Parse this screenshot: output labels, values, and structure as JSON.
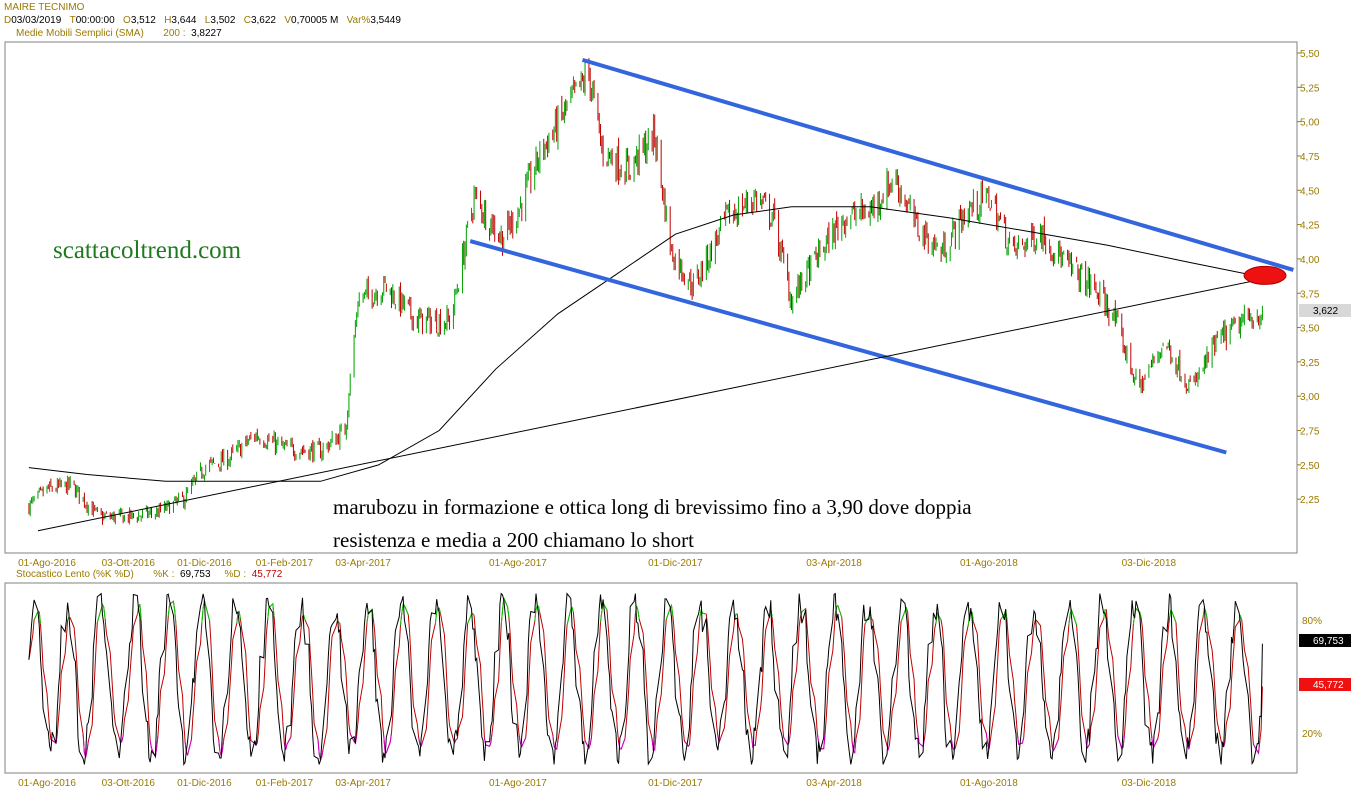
{
  "header": {
    "symbol": "MAIRE TECNIMO",
    "fields": [
      {
        "key": "D",
        "value": "03/03/2019"
      },
      {
        "key": "T",
        "value": "00:00:00"
      },
      {
        "key": "O",
        "value": "3,512"
      },
      {
        "key": "H",
        "value": "3,644"
      },
      {
        "key": "L",
        "value": "3,502"
      },
      {
        "key": "C",
        "value": "3,622"
      },
      {
        "key": "V",
        "value": "0,70005 M"
      },
      {
        "key": "Var%",
        "value": "3,5449"
      }
    ],
    "sma_label": "Medie Mobili Semplici (SMA)",
    "sma_period": "200 :",
    "sma_value": "3,8227"
  },
  "stoch_header": {
    "label": "Stocastico Lento (%K %D)",
    "k_label": "%K :",
    "k_value": "69,753",
    "d_label": "%D :",
    "d_value": "45,772"
  },
  "watermark": "scattacoltrend.com",
  "annotation": {
    "line1": "marubozu in formazione e ottica long di brevissimo fino a 3,90 dove doppia",
    "line2": "resistenza e media a 200 chiamano lo short"
  },
  "price_badge": "3,622",
  "k_badge": "69,753",
  "d_badge": "45,772",
  "colors": {
    "up": "#00a000",
    "down": "#c00000",
    "channel": "#3366dd",
    "sma": "#000000",
    "stoch_k": "#000000",
    "stoch_d": "#c00000",
    "stoch_overbought": "#00cc00",
    "stoch_oversold": "#cc00cc",
    "axis_text": "#9a7a00",
    "marker": "#ee1111"
  },
  "chart_data": [
    {
      "type": "candlestick",
      "title": "MAIRE TECNIMO",
      "y_ticks": [
        "5,50",
        "5,25",
        "5,00",
        "4,75",
        "4,50",
        "4,25",
        "4,00",
        "3,75",
        "3,50",
        "3,25",
        "3,00",
        "2,75",
        "2,50",
        "2,25"
      ],
      "x_ticks": [
        "01-Ago-2016",
        "03-Ott-2016",
        "01-Dic-2016",
        "01-Feb-2017",
        "03-Apr-2017",
        "01-Ago-2017",
        "01-Dic-2017",
        "03-Apr-2018",
        "01-Ago-2018",
        "03-Dic-2018"
      ],
      "ylim": [
        2.0,
        5.5
      ],
      "close_path": [
        [
          "2016-07-18",
          2.2
        ],
        [
          "2016-08-01",
          2.32
        ],
        [
          "2016-08-20",
          2.35
        ],
        [
          "2016-09-10",
          2.12
        ],
        [
          "2016-10-03",
          2.12
        ],
        [
          "2016-10-25",
          2.15
        ],
        [
          "2016-11-15",
          2.25
        ],
        [
          "2016-12-01",
          2.48
        ],
        [
          "2016-12-20",
          2.55
        ],
        [
          "2017-01-10",
          2.72
        ],
        [
          "2017-02-01",
          2.62
        ],
        [
          "2017-03-01",
          2.6
        ],
        [
          "2017-03-20",
          2.75
        ],
        [
          "2017-03-30",
          3.7
        ],
        [
          "2017-04-20",
          3.8
        ],
        [
          "2017-05-15",
          3.55
        ],
        [
          "2017-06-10",
          3.55
        ],
        [
          "2017-06-28",
          4.45
        ],
        [
          "2017-07-20",
          4.15
        ],
        [
          "2017-08-01",
          4.35
        ],
        [
          "2017-08-20",
          4.8
        ],
        [
          "2017-09-15",
          5.2
        ],
        [
          "2017-09-25",
          5.35
        ],
        [
          "2017-10-05",
          4.8
        ],
        [
          "2017-10-25",
          4.65
        ],
        [
          "2017-11-15",
          4.9
        ],
        [
          "2017-11-28",
          4.05
        ],
        [
          "2017-12-15",
          3.8
        ],
        [
          "2018-01-10",
          4.3
        ],
        [
          "2018-02-01",
          4.45
        ],
        [
          "2018-02-15",
          4.3
        ],
        [
          "2018-03-01",
          3.7
        ],
        [
          "2018-03-20",
          4.0
        ],
        [
          "2018-04-10",
          4.3
        ],
        [
          "2018-05-01",
          4.35
        ],
        [
          "2018-05-20",
          4.6
        ],
        [
          "2018-06-05",
          4.25
        ],
        [
          "2018-06-25",
          4.05
        ],
        [
          "2018-07-15",
          4.35
        ],
        [
          "2018-08-01",
          4.45
        ],
        [
          "2018-08-20",
          4.05
        ],
        [
          "2018-09-10",
          4.2
        ],
        [
          "2018-10-01",
          3.95
        ],
        [
          "2018-10-20",
          3.8
        ],
        [
          "2018-11-05",
          3.6
        ],
        [
          "2018-11-25",
          3.05
        ],
        [
          "2018-12-15",
          3.4
        ],
        [
          "2019-01-05",
          3.05
        ],
        [
          "2019-01-25",
          3.4
        ],
        [
          "2019-02-15",
          3.55
        ],
        [
          "2019-03-03",
          3.622
        ]
      ],
      "last_close": 3.622,
      "sma200_path": [
        [
          "2016-07-18",
          2.48
        ],
        [
          "2016-09-01",
          2.43
        ],
        [
          "2016-11-01",
          2.38
        ],
        [
          "2017-01-01",
          2.38
        ],
        [
          "2017-03-01",
          2.38
        ],
        [
          "2017-04-15",
          2.5
        ],
        [
          "2017-06-01",
          2.75
        ],
        [
          "2017-07-15",
          3.2
        ],
        [
          "2017-09-01",
          3.6
        ],
        [
          "2017-10-15",
          3.88
        ],
        [
          "2017-12-01",
          4.18
        ],
        [
          "2018-01-15",
          4.32
        ],
        [
          "2018-03-01",
          4.38
        ],
        [
          "2018-05-01",
          4.38
        ],
        [
          "2018-07-01",
          4.3
        ],
        [
          "2018-09-01",
          4.2
        ],
        [
          "2018-11-01",
          4.1
        ],
        [
          "2019-01-01",
          3.98
        ],
        [
          "2019-03-10",
          3.85
        ]
      ],
      "trendlines": [
        {
          "name": "",
          "color": "channel",
          "points": [
            [
              "2017-09-20",
              5.45
            ],
            [
              "2019-03-25",
              3.92
            ]
          ]
        },
        {
          "name": "",
          "color": "channel",
          "points": [
            [
              "2017-06-25",
              4.13
            ],
            [
              "2019-02-01",
              2.59
            ]
          ]
        },
        {
          "name": "",
          "color": "sma",
          "points": [
            [
              "2016-07-25",
              2.02
            ],
            [
              "2019-03-15",
              3.88
            ]
          ]
        }
      ],
      "marker": {
        "x": "2019-03-03",
        "y": 3.88
      }
    },
    {
      "type": "line",
      "title": "Stocastico Lento (%K %D)",
      "y_ticks": [
        "80%",
        "20%"
      ],
      "ylim": [
        0,
        100
      ],
      "series": [
        {
          "name": "%K",
          "last": 69.753
        },
        {
          "name": "%D",
          "last": 45.772
        }
      ]
    }
  ]
}
